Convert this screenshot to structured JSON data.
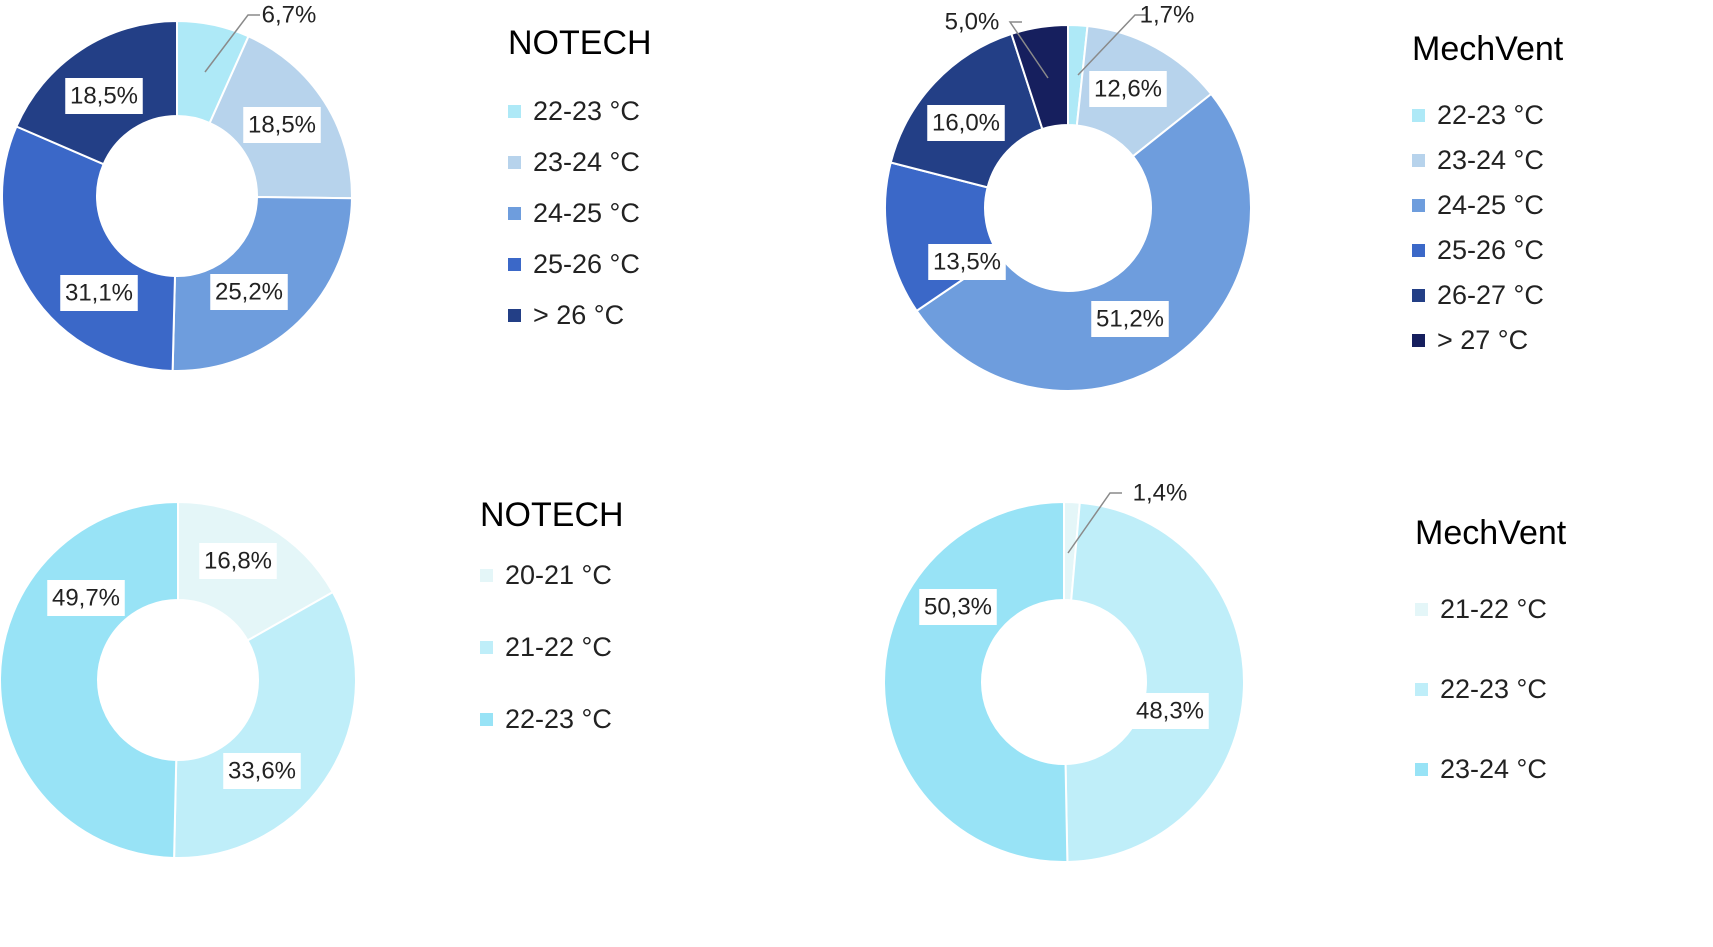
{
  "chart_data": [
    {
      "type": "pie",
      "title": "NOTECH",
      "categories": [
        "22-23 °C",
        "23-24 °C",
        "24-25 °C",
        "25-26 °C",
        "> 26 °C"
      ],
      "values": [
        6.7,
        18.5,
        25.2,
        31.1,
        18.5
      ],
      "labels": [
        "6,7%",
        "18,5%",
        "25,2%",
        "31,1%",
        "18,5%"
      ],
      "colors": [
        "#aee9f7",
        "#b7d3ec",
        "#6e9ddd",
        "#3b68c8",
        "#233f86"
      ],
      "legend": "right"
    },
    {
      "type": "pie",
      "title": "MechVent",
      "categories": [
        "22-23 °C",
        "23-24 °C",
        "24-25 °C",
        "25-26 °C",
        "26-27 °C",
        "> 27 °C"
      ],
      "values": [
        1.7,
        12.6,
        51.2,
        13.5,
        16.0,
        5.0
      ],
      "labels": [
        "1,7%",
        "12,6%",
        "51,2%",
        "13,5%",
        "16,0%",
        "5,0%"
      ],
      "colors": [
        "#aee9f7",
        "#b7d3ec",
        "#6e9ddd",
        "#3b68c8",
        "#233f86",
        "#161f5e"
      ],
      "legend": "right"
    },
    {
      "type": "pie",
      "title": "NOTECH",
      "categories": [
        "20-21 °C",
        "21-22 °C",
        "22-23 °C"
      ],
      "values": [
        16.8,
        33.6,
        49.7
      ],
      "labels": [
        "16,8%",
        "33,6%",
        "49,7%"
      ],
      "colors": [
        "#e4f6f8",
        "#bfeef9",
        "#98e3f6"
      ],
      "legend": "right"
    },
    {
      "type": "pie",
      "title": "MechVent",
      "categories": [
        "21-22 °C",
        "22-23 °C",
        "23-24 °C"
      ],
      "values": [
        1.4,
        48.3,
        50.3
      ],
      "labels": [
        "1,4%",
        "48,3%",
        "50,3%"
      ],
      "colors": [
        "#e4f6f8",
        "#bfeef9",
        "#98e3f6"
      ],
      "legend": "right"
    }
  ]
}
